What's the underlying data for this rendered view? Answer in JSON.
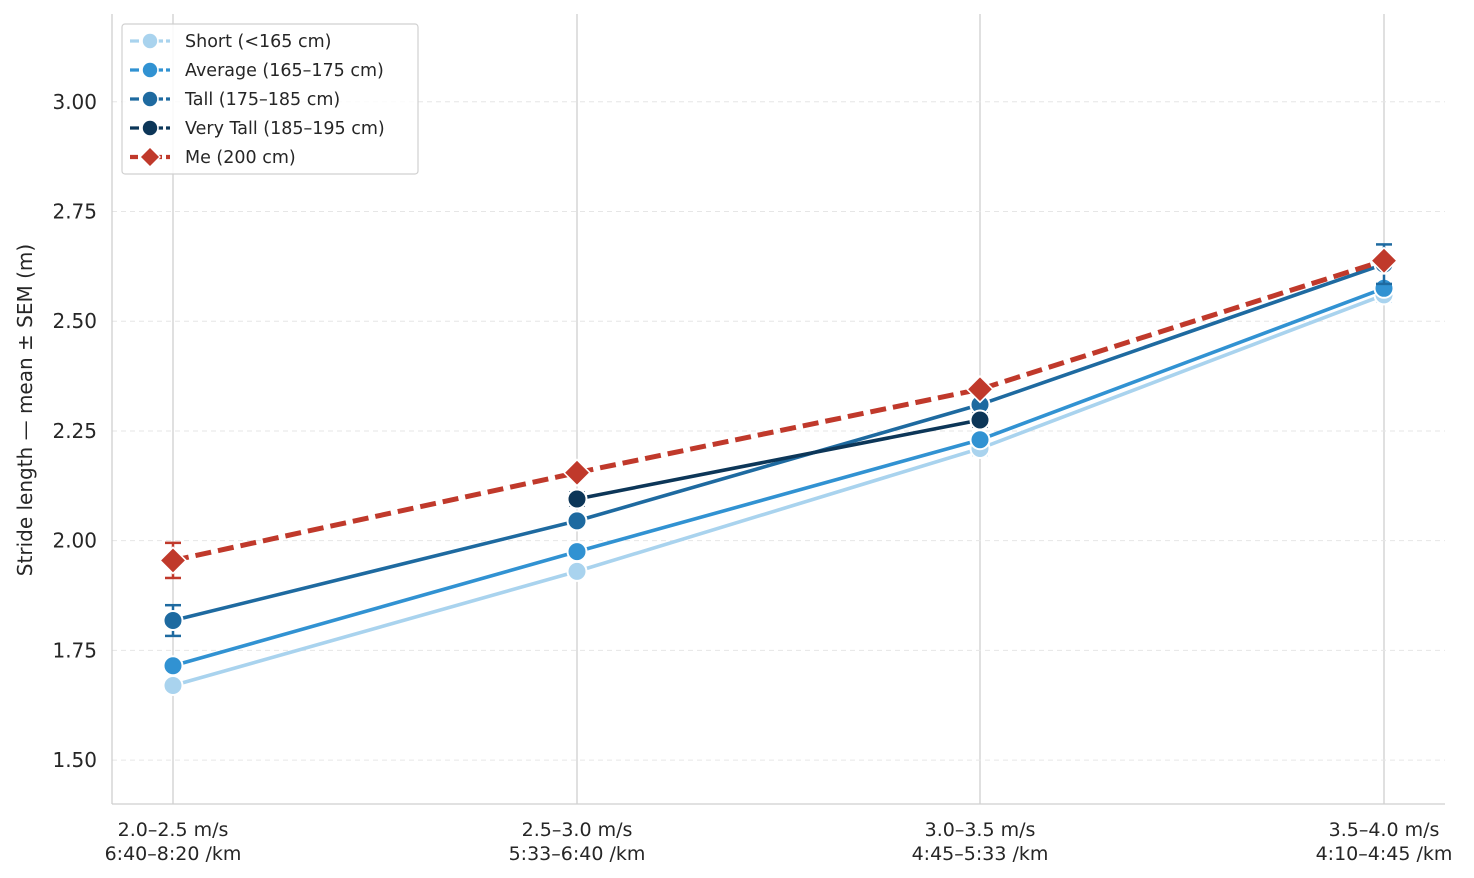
{
  "chart_data": {
    "type": "line",
    "title": "",
    "xlabel": "",
    "ylabel": "Stride length — mean ± SEM (m)",
    "categories": [
      [
        "2.0–2.5 m/s",
        "6:40–8:20 /km"
      ],
      [
        "2.5–3.0 m/s",
        "5:33–6:40 /km"
      ],
      [
        "3.0–3.5 m/s",
        "4:45–5:33 /km"
      ],
      [
        "3.5–4.0 m/s",
        "4:10–4:45 /km"
      ]
    ],
    "ylim": [
      1.4,
      3.2
    ],
    "yticks": [
      "1.50",
      "1.75",
      "2.00",
      "2.25",
      "2.50",
      "2.75",
      "3.00"
    ],
    "grid": {
      "x": true,
      "y": true,
      "y_style": "dashed"
    },
    "legend": {
      "placement": "top-left"
    },
    "series": [
      {
        "name": "Short (<165 cm)",
        "color": "#a9d3ee",
        "marker": "circle",
        "dash": false,
        "values": [
          1.67,
          1.93,
          2.21,
          2.56
        ],
        "sem": [
          0.012,
          0.01,
          0.015,
          0.015
        ]
      },
      {
        "name": "Average (165–175 cm)",
        "color": "#3192d2",
        "marker": "circle",
        "dash": false,
        "values": [
          1.715,
          1.975,
          2.23,
          2.575
        ],
        "sem": [
          0.01,
          0.01,
          0.01,
          0.012
        ]
      },
      {
        "name": "Tall (175–185 cm)",
        "color": "#1e6aa0",
        "marker": "circle",
        "dash": false,
        "values": [
          1.818,
          2.045,
          2.31,
          2.63
        ],
        "sem": [
          0.035,
          0.012,
          0.012,
          0.045
        ]
      },
      {
        "name": "Very Tall (185–195 cm)",
        "color": "#0c3658",
        "marker": "circle",
        "dash": false,
        "values": [
          null,
          2.095,
          2.275,
          null
        ],
        "sem": [
          null,
          0.015,
          0.015,
          null
        ]
      },
      {
        "name": "Me (200 cm)",
        "color": "#c0392b",
        "marker": "diamond",
        "dash": true,
        "values": [
          1.955,
          2.155,
          2.345,
          2.638
        ],
        "sem": [
          0.04,
          0.0,
          0.0,
          0.0
        ]
      }
    ]
  }
}
